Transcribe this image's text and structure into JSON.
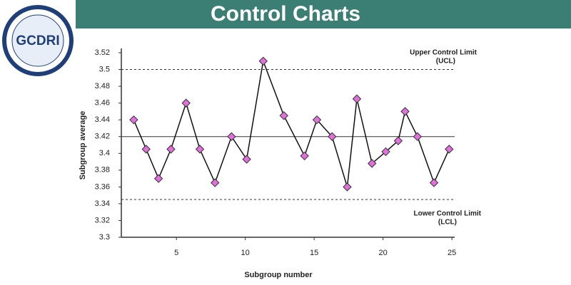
{
  "logo": "GCDRI",
  "chart_data": {
    "type": "line",
    "title": "Control Charts",
    "xlabel": "Subgroup number",
    "ylabel": "Subgroup average",
    "x": [
      1.9,
      2.8,
      3.7,
      4.6,
      5.7,
      6.7,
      7.8,
      9.0,
      10.1,
      11.3,
      12.8,
      14.3,
      15.2,
      16.3,
      17.4,
      18.1,
      19.2,
      20.2,
      21.1,
      21.6,
      22.5,
      23.7,
      24.8
    ],
    "series": [
      {
        "name": "Subgroup average",
        "color": "#e26fdc",
        "values": [
          3.44,
          3.405,
          3.37,
          3.405,
          3.46,
          3.405,
          3.365,
          3.42,
          3.393,
          3.51,
          3.445,
          3.397,
          3.44,
          3.42,
          3.36,
          3.465,
          3.388,
          3.402,
          3.415,
          3.45,
          3.42,
          3.365,
          3.405
        ]
      }
    ],
    "xlim": [
      1,
      25.2
    ],
    "ylim": [
      3.3,
      3.52
    ],
    "xticks": [
      5,
      10,
      15,
      20,
      25
    ],
    "yticks": [
      3.3,
      3.32,
      3.34,
      3.36,
      3.38,
      3.4,
      3.42,
      3.44,
      3.46,
      3.48,
      3.5,
      3.52
    ],
    "limits": {
      "ucl": {
        "value": 3.5,
        "label": "Upper Control Limit",
        "abbr": "(UCL)"
      },
      "center": {
        "value": 3.42
      },
      "lcl": {
        "value": 3.345,
        "label": "Lower Control Limit",
        "abbr": "(LCL)"
      }
    }
  }
}
